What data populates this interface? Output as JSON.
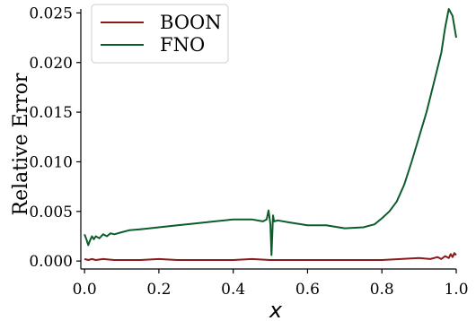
{
  "chart_data": {
    "type": "line",
    "title": "",
    "xlabel": "x",
    "ylabel": "Relative Error",
    "xlim": [
      -0.01,
      1.0
    ],
    "ylim": [
      -0.0008,
      0.0254
    ],
    "x_ticks": [
      0.0,
      0.2,
      0.4,
      0.6,
      0.8,
      1.0
    ],
    "x_tick_labels": [
      "0.0",
      "0.2",
      "0.4",
      "0.6",
      "0.8",
      "1.0"
    ],
    "y_ticks": [
      0.0,
      0.005,
      0.01,
      0.015,
      0.02,
      0.025
    ],
    "y_tick_labels": [
      "0.000",
      "0.005",
      "0.010",
      "0.015",
      "0.020",
      "0.025"
    ],
    "grid": false,
    "legend": "top-left",
    "series": [
      {
        "name": "BOON",
        "color": "#8b1a1a",
        "x": [
          0.0,
          0.01,
          0.02,
          0.03,
          0.05,
          0.08,
          0.1,
          0.15,
          0.2,
          0.25,
          0.3,
          0.35,
          0.4,
          0.45,
          0.5,
          0.55,
          0.6,
          0.65,
          0.7,
          0.75,
          0.8,
          0.85,
          0.9,
          0.93,
          0.95,
          0.96,
          0.97,
          0.98,
          0.985,
          0.99,
          0.995,
          1.0
        ],
        "y": [
          0.0002,
          0.0001,
          0.0002,
          0.0001,
          0.0002,
          0.0001,
          0.0001,
          0.0001,
          0.0002,
          0.0001,
          0.0001,
          0.0001,
          0.0001,
          0.0002,
          0.0001,
          0.0001,
          0.0001,
          0.0001,
          0.0001,
          0.0001,
          0.0001,
          0.0002,
          0.0003,
          0.0002,
          0.0004,
          0.0002,
          0.0005,
          0.0003,
          0.0007,
          0.0004,
          0.0008,
          0.0006
        ]
      },
      {
        "name": "FNO",
        "color": "#0b5e2a",
        "x": [
          0.0,
          0.005,
          0.01,
          0.015,
          0.02,
          0.025,
          0.03,
          0.04,
          0.05,
          0.06,
          0.07,
          0.08,
          0.1,
          0.12,
          0.15,
          0.2,
          0.25,
          0.3,
          0.35,
          0.4,
          0.45,
          0.48,
          0.49,
          0.495,
          0.5,
          0.503,
          0.507,
          0.51,
          0.52,
          0.55,
          0.6,
          0.65,
          0.7,
          0.75,
          0.78,
          0.8,
          0.82,
          0.84,
          0.86,
          0.88,
          0.9,
          0.92,
          0.94,
          0.96,
          0.97,
          0.98,
          0.99,
          1.0
        ],
        "y": [
          0.0027,
          0.0022,
          0.0016,
          0.0021,
          0.0025,
          0.0022,
          0.0025,
          0.0023,
          0.0027,
          0.0025,
          0.0028,
          0.0027,
          0.0029,
          0.0031,
          0.0032,
          0.0034,
          0.0036,
          0.0038,
          0.004,
          0.0042,
          0.0042,
          0.004,
          0.0042,
          0.0051,
          0.0037,
          0.0006,
          0.0046,
          0.004,
          0.0041,
          0.0039,
          0.0036,
          0.0036,
          0.0033,
          0.0034,
          0.0037,
          0.0043,
          0.005,
          0.006,
          0.0077,
          0.01,
          0.0125,
          0.015,
          0.018,
          0.021,
          0.0235,
          0.0254,
          0.0247,
          0.0225
        ]
      }
    ]
  }
}
